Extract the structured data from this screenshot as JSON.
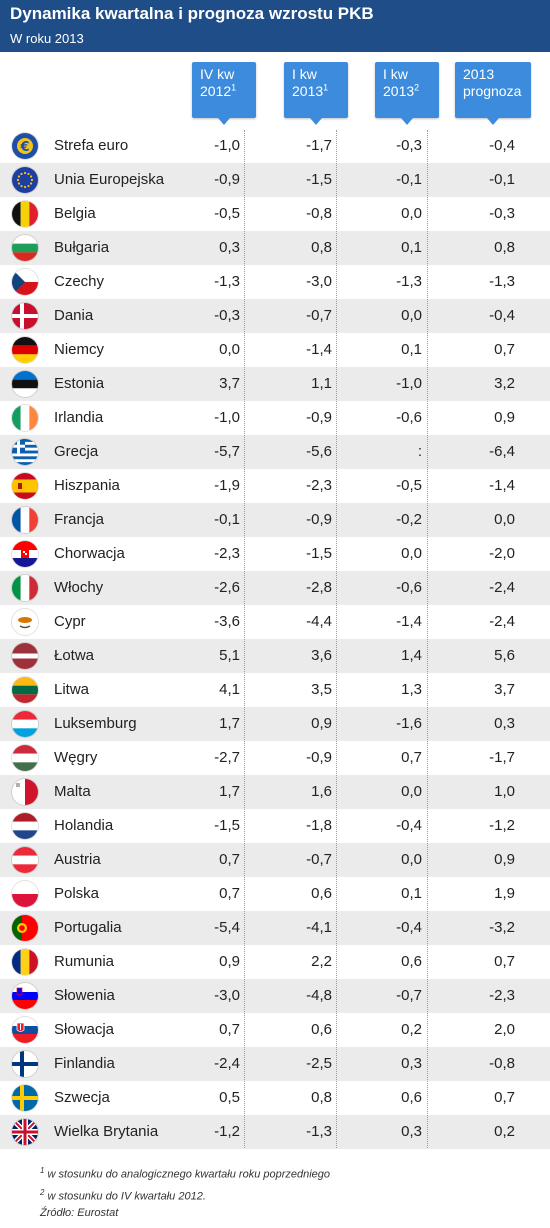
{
  "title": "Dynamika kwartalna i prognoza wzrostu PKB",
  "subtitle": "W roku 2013",
  "columns": [
    {
      "line1": "IV kw",
      "line2": "2012",
      "sup": "1"
    },
    {
      "line1": "I kw",
      "line2": "2013",
      "sup": "1"
    },
    {
      "line1": "I kw",
      "line2": "2013",
      "sup": "2"
    },
    {
      "line1": "2013",
      "line2": "prognoza",
      "sup": ""
    }
  ],
  "chart_data": {
    "type": "table",
    "title": "Dynamika kwartalna i prognoza wzrostu PKB",
    "subtitle": "W roku 2013",
    "rows": [
      {
        "country": "Strefa euro",
        "flag": "eu-euro-flag-icon",
        "values": [
          "-1,0",
          "-1,7",
          "-0,3",
          "-0,4"
        ]
      },
      {
        "country": "Unia Europejska",
        "flag": "eu-flag-icon",
        "values": [
          "-0,9",
          "-1,5",
          "-0,1",
          "-0,1"
        ]
      },
      {
        "country": "Belgia",
        "flag": "belgium-flag-icon",
        "values": [
          "-0,5",
          "-0,8",
          "0,0",
          "-0,3"
        ]
      },
      {
        "country": "Bułgaria",
        "flag": "bulgaria-flag-icon",
        "values": [
          "0,3",
          "0,8",
          "0,1",
          "0,8"
        ]
      },
      {
        "country": "Czechy",
        "flag": "czech-flag-icon",
        "values": [
          "-1,3",
          "-3,0",
          "-1,3",
          "-1,3"
        ]
      },
      {
        "country": "Dania",
        "flag": "denmark-flag-icon",
        "values": [
          "-0,3",
          "-0,7",
          "0,0",
          "-0,4"
        ]
      },
      {
        "country": "Niemcy",
        "flag": "germany-flag-icon",
        "values": [
          "0,0",
          "-1,4",
          "0,1",
          "0,7"
        ]
      },
      {
        "country": "Estonia",
        "flag": "estonia-flag-icon",
        "values": [
          "3,7",
          "1,1",
          "-1,0",
          "3,2"
        ]
      },
      {
        "country": "Irlandia",
        "flag": "ireland-flag-icon",
        "values": [
          "-1,0",
          "-0,9",
          "-0,6",
          "0,9"
        ]
      },
      {
        "country": "Grecja",
        "flag": "greece-flag-icon",
        "values": [
          "-5,7",
          "-5,6",
          ":",
          "-6,4"
        ]
      },
      {
        "country": "Hiszpania",
        "flag": "spain-flag-icon",
        "values": [
          "-1,9",
          "-2,3",
          "-0,5",
          "-1,4"
        ]
      },
      {
        "country": "Francja",
        "flag": "france-flag-icon",
        "values": [
          "-0,1",
          "-0,9",
          "-0,2",
          "0,0"
        ]
      },
      {
        "country": "Chorwacja",
        "flag": "croatia-flag-icon",
        "values": [
          "-2,3",
          "-1,5",
          "0,0",
          "-2,0"
        ]
      },
      {
        "country": "Włochy",
        "flag": "italy-flag-icon",
        "values": [
          "-2,6",
          "-2,8",
          "-0,6",
          "-2,4"
        ]
      },
      {
        "country": "Cypr",
        "flag": "cyprus-flag-icon",
        "values": [
          "-3,6",
          "-4,4",
          "-1,4",
          "-2,4"
        ]
      },
      {
        "country": "Łotwa",
        "flag": "latvia-flag-icon",
        "values": [
          "5,1",
          "3,6",
          "1,4",
          "5,6"
        ]
      },
      {
        "country": "Litwa",
        "flag": "lithuania-flag-icon",
        "values": [
          "4,1",
          "3,5",
          "1,3",
          "3,7"
        ]
      },
      {
        "country": "Luksemburg",
        "flag": "luxembourg-flag-icon",
        "values": [
          "1,7",
          "0,9",
          "-1,6",
          "0,3"
        ]
      },
      {
        "country": "Węgry",
        "flag": "hungary-flag-icon",
        "values": [
          "-2,7",
          "-0,9",
          "0,7",
          "-1,7"
        ]
      },
      {
        "country": "Malta",
        "flag": "malta-flag-icon",
        "values": [
          "1,7",
          "1,6",
          "0,0",
          "1,0"
        ]
      },
      {
        "country": "Holandia",
        "flag": "netherlands-flag-icon",
        "values": [
          "-1,5",
          "-1,8",
          "-0,4",
          "-1,2"
        ]
      },
      {
        "country": "Austria",
        "flag": "austria-flag-icon",
        "values": [
          "0,7",
          "-0,7",
          "0,0",
          "0,9"
        ]
      },
      {
        "country": "Polska",
        "flag": "poland-flag-icon",
        "values": [
          "0,7",
          "0,6",
          "0,1",
          "1,9"
        ]
      },
      {
        "country": "Portugalia",
        "flag": "portugal-flag-icon",
        "values": [
          "-5,4",
          "-4,1",
          "-0,4",
          "-3,2"
        ]
      },
      {
        "country": "Rumunia",
        "flag": "romania-flag-icon",
        "values": [
          "0,9",
          "2,2",
          "0,6",
          "0,7"
        ]
      },
      {
        "country": "Słowenia",
        "flag": "slovenia-flag-icon",
        "values": [
          "-3,0",
          "-4,8",
          "-0,7",
          "-2,3"
        ]
      },
      {
        "country": "Słowacja",
        "flag": "slovakia-flag-icon",
        "values": [
          "0,7",
          "0,6",
          "0,2",
          "2,0"
        ]
      },
      {
        "country": "Finlandia",
        "flag": "finland-flag-icon",
        "values": [
          "-2,4",
          "-2,5",
          "0,3",
          "-0,8"
        ]
      },
      {
        "country": "Szwecja",
        "flag": "sweden-flag-icon",
        "values": [
          "0,5",
          "0,8",
          "0,6",
          "0,7"
        ]
      },
      {
        "country": "Wielka Brytania",
        "flag": "uk-flag-icon",
        "values": [
          "-1,2",
          "-1,3",
          "0,3",
          "0,2"
        ]
      }
    ]
  },
  "footnotes": {
    "note1_mark": "1",
    "note1": "w stosunku do analogicznego kwartału roku poprzedniego",
    "note2_mark": "2",
    "note2": "w stosunku do IV kwartału 2012.",
    "source": "Źródło: Eurostat"
  }
}
